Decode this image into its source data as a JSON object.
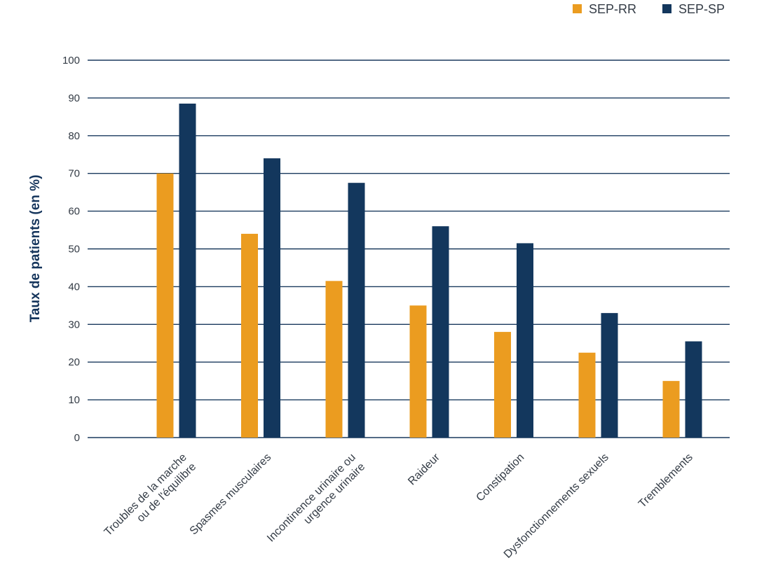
{
  "chart_data": {
    "type": "bar",
    "title": "",
    "xlabel": "",
    "ylabel": "Taux de patients (en %)",
    "ylim": [
      0,
      100
    ],
    "yticks": [
      "0",
      "10",
      "20",
      "30",
      "40",
      "50",
      "60",
      "70",
      "80",
      "90",
      "100"
    ],
    "grid": true,
    "legend_position": "top-right",
    "categories": [
      [
        "Troubles de la marche",
        "ou de l'équilibre"
      ],
      [
        "Spasmes musculaires"
      ],
      [
        "Incontinence urinaire ou",
        "urgence urinaire"
      ],
      [
        "Raideur"
      ],
      [
        "Constipation"
      ],
      [
        "Dysfonctionnements sexuels"
      ],
      [
        "Tremblements"
      ]
    ],
    "series": [
      {
        "name": "SEP-RR",
        "color": "#eb9c20",
        "values": [
          70,
          54,
          41.5,
          35,
          28,
          22.5,
          15
        ]
      },
      {
        "name": "SEP-SP",
        "color": "#13375d",
        "values": [
          88.5,
          74,
          67.5,
          56,
          51.5,
          33,
          25.5
        ]
      }
    ]
  }
}
